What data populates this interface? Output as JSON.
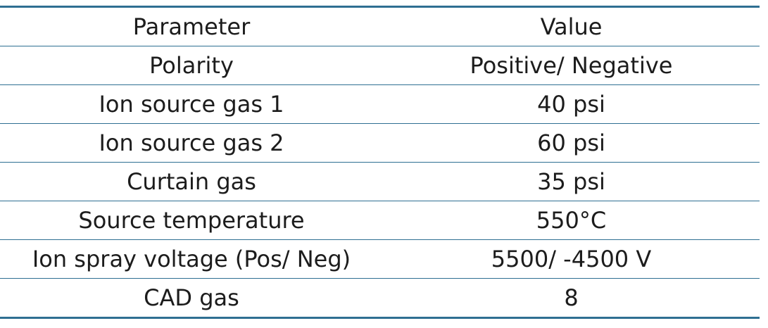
{
  "table": {
    "headers": [
      "Parameter",
      "Value"
    ],
    "rows": [
      [
        "Polarity",
        "Positive/ Negative"
      ],
      [
        "Ion source gas 1",
        "40 psi"
      ],
      [
        "Ion source gas 2",
        "60 psi"
      ],
      [
        "Curtain gas",
        "35 psi"
      ],
      [
        "Source temperature",
        "550°C"
      ],
      [
        "Ion spray voltage (Pos/ Neg)",
        "5500/ -4500 V"
      ],
      [
        "CAD gas",
        "8"
      ]
    ]
  },
  "colors": {
    "rule": "#2e6f92",
    "text": "#1c1c1c"
  }
}
